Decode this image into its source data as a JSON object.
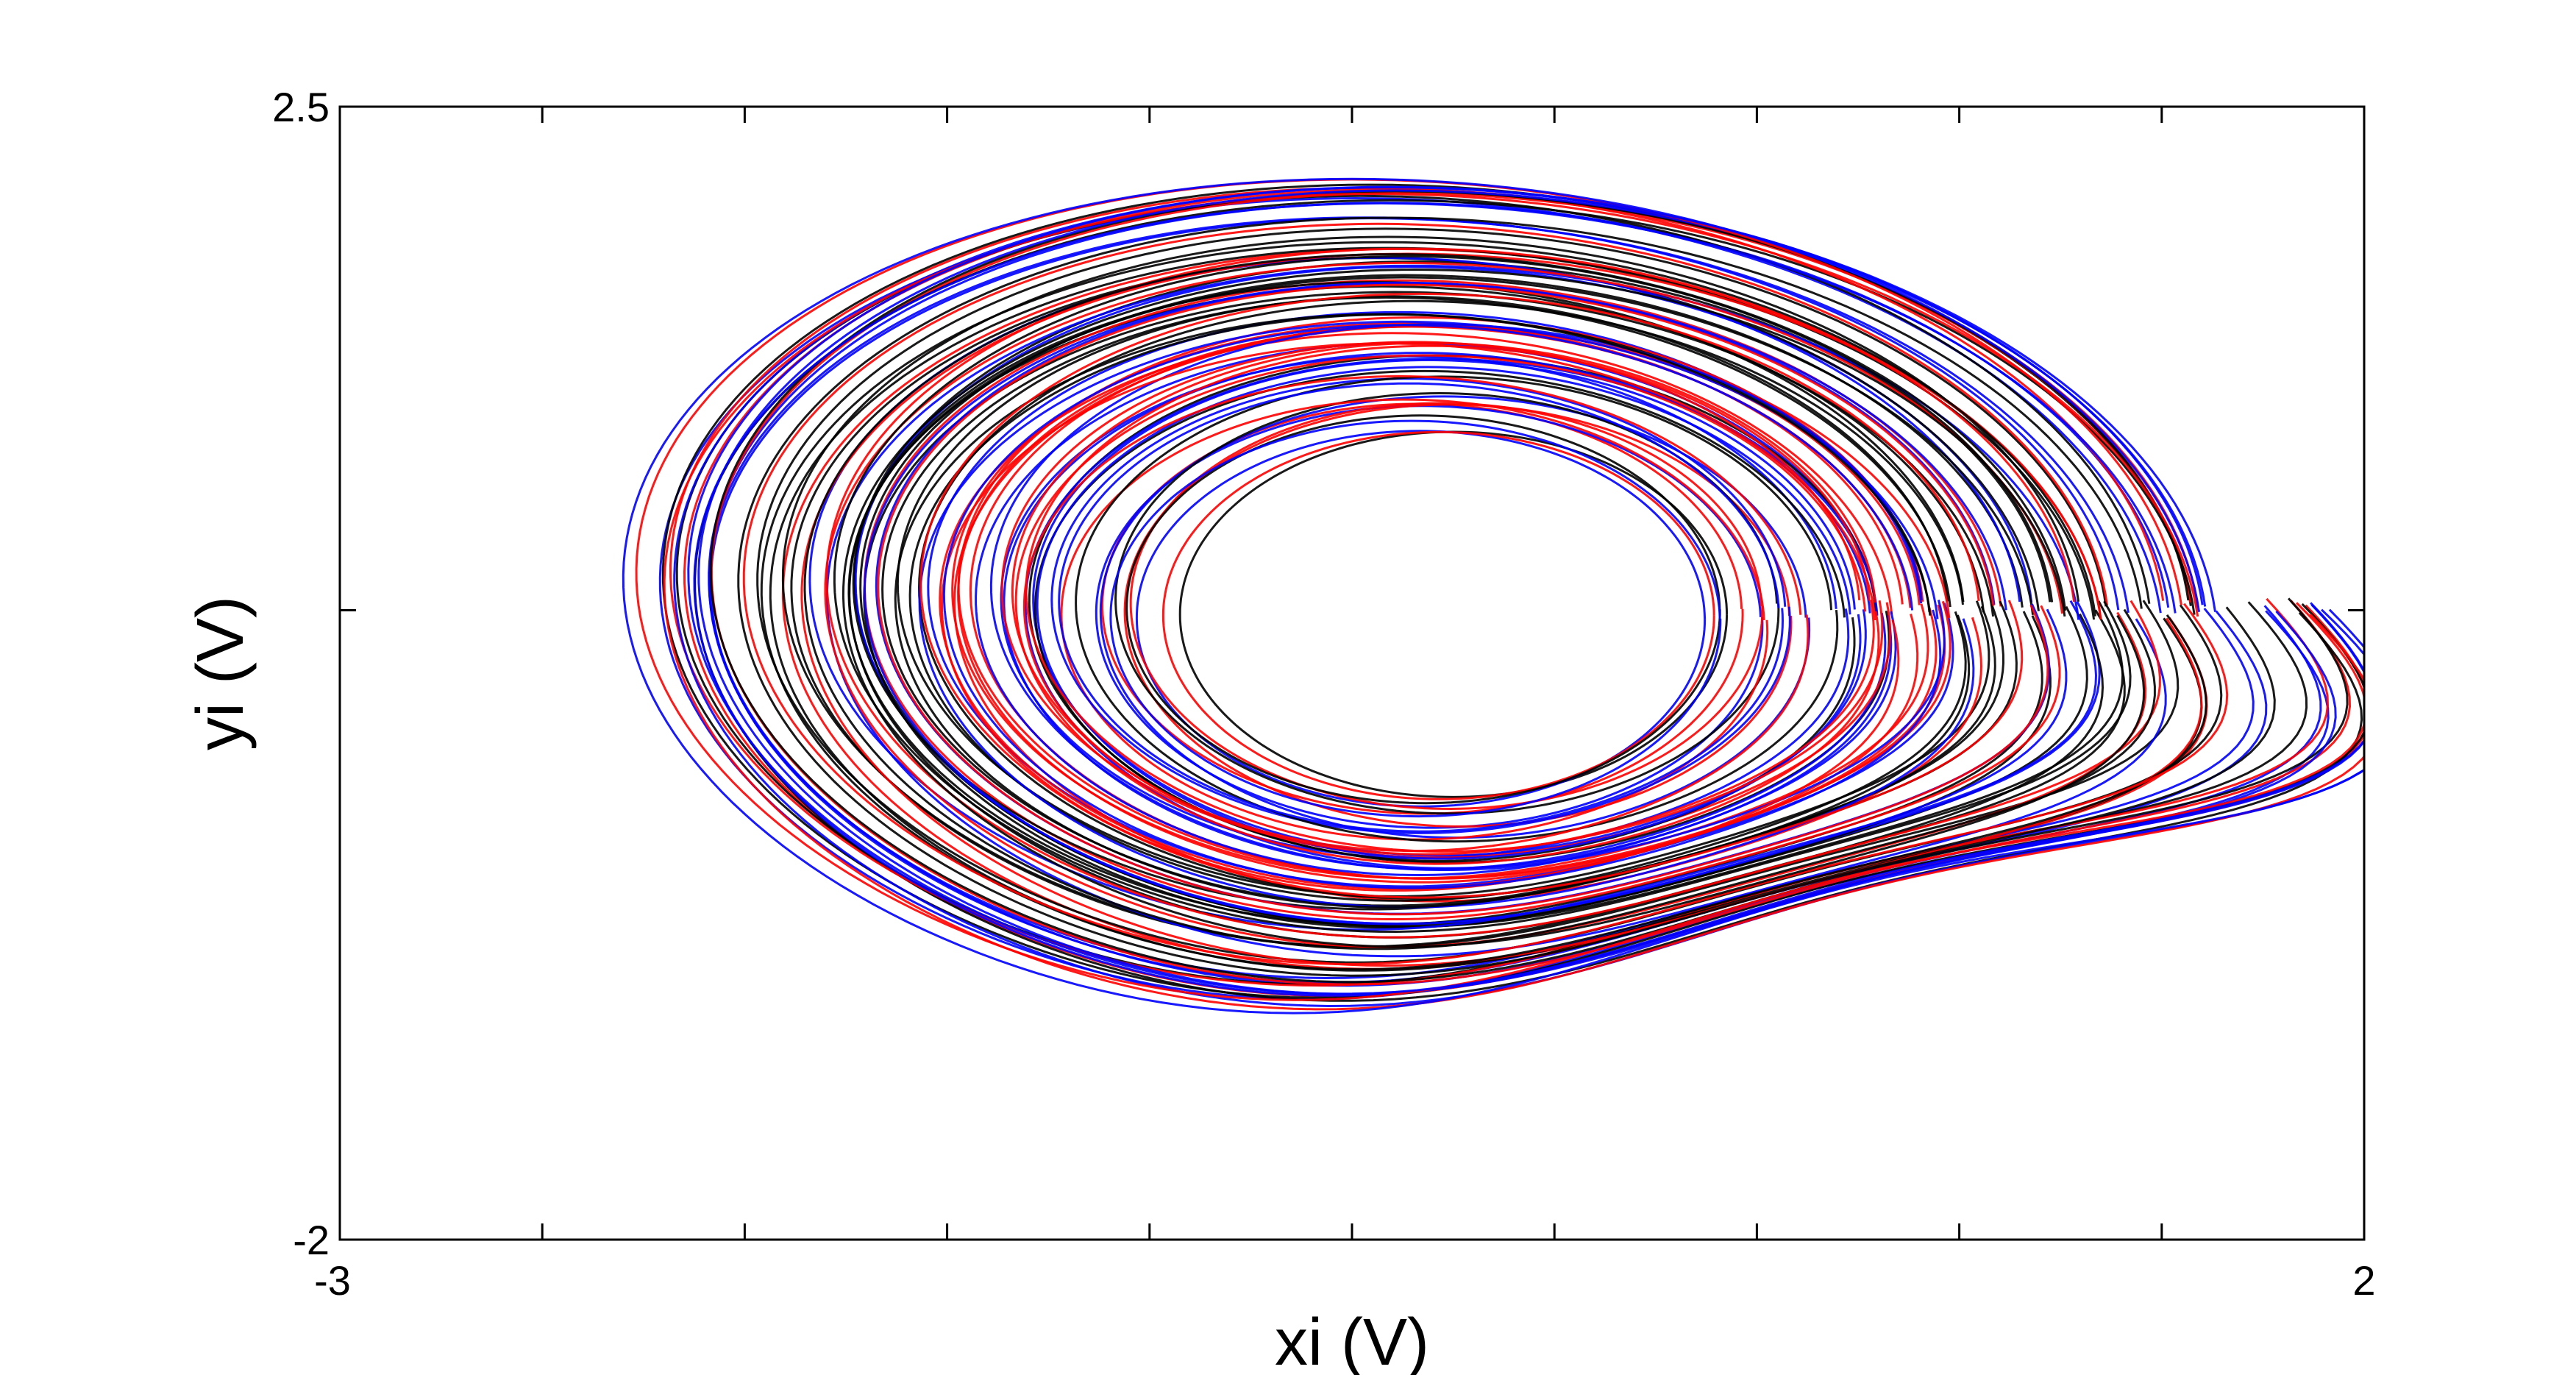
{
  "chart_data": {
    "type": "line",
    "title": "",
    "xlabel": "xi (V)",
    "ylabel": "yi (V)",
    "xlim": [
      -3,
      2
    ],
    "ylim": [
      -2,
      2.5
    ],
    "x_tick_labels": [
      "-3",
      "2"
    ],
    "y_tick_labels": [
      "-2",
      "2.5"
    ],
    "x_minor_ticks": [
      -2.5,
      -2,
      -1.5,
      -1,
      -0.5,
      0,
      0.5,
      1,
      1.5
    ],
    "y_minor_ticks": [
      0.5
    ],
    "grid": false,
    "legend": "none",
    "series_colors": [
      "#000000",
      "#0000ff",
      "#ff0000"
    ],
    "attractor": {
      "center": [
        -0.3,
        0.5
      ],
      "x_extent": [
        -2.5,
        1.4
      ],
      "y_extent": [
        -1.45,
        2.0
      ],
      "inner_hole_x": [
        -1.0,
        0.35
      ],
      "inner_hole_y": [
        -0.25,
        1.2
      ]
    }
  }
}
